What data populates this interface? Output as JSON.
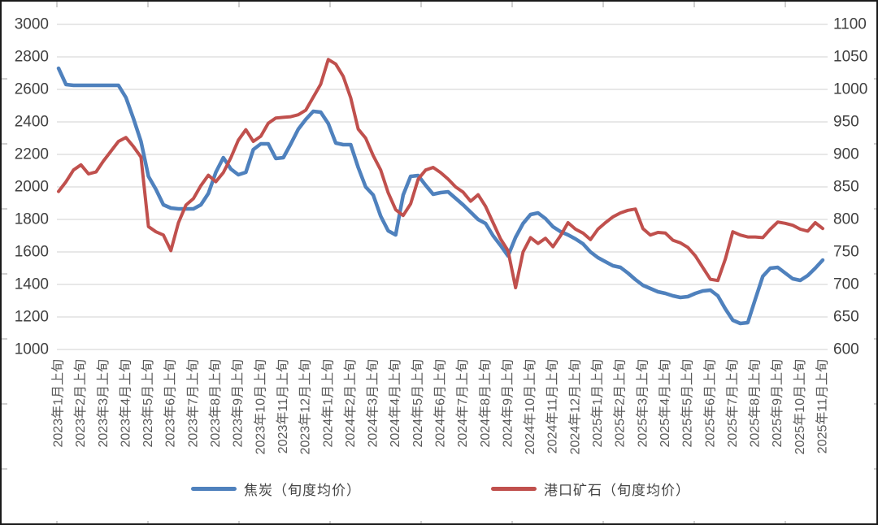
{
  "chart_data": {
    "type": "line",
    "title": "",
    "grid": "horizontal",
    "legend_position": "bottom",
    "points_per_month": 3,
    "x_tick_labels": [
      "2023年1月上旬",
      "2023年2月上旬",
      "2023年3月上旬",
      "2023年4月上旬",
      "2023年5月上旬",
      "2023年6月上旬",
      "2023年7月上旬",
      "2023年8月上旬",
      "2023年9月上旬",
      "2023年10月上旬",
      "2023年11月上旬",
      "2023年12月上旬",
      "2024年1月上旬",
      "2024年2月上旬",
      "2024年3月上旬",
      "2024年4月上旬",
      "2024年5月上旬",
      "2024年6月上旬",
      "2024年7月上旬",
      "2024年8月上旬",
      "2024年9月上旬",
      "2024年10月上旬",
      "2024年11月上旬",
      "2024年12月上旬",
      "2025年1月上旬",
      "2025年2月上旬",
      "2025年3月上旬",
      "2025年4月上旬",
      "2025年5月上旬",
      "2025年6月上旬",
      "2025年7月上旬",
      "2025年8月上旬",
      "2025年9月上旬",
      "2025年10月上旬",
      "2025年11月上旬"
    ],
    "left_axis": {
      "min": 1000,
      "max": 3000,
      "step": 200,
      "ticks": [
        3000,
        2800,
        2600,
        2400,
        2200,
        2000,
        1800,
        1600,
        1400,
        1200,
        1000
      ]
    },
    "right_axis": {
      "min": 600,
      "max": 1100,
      "step": 50,
      "ticks": [
        1100,
        1050,
        1000,
        950,
        900,
        850,
        800,
        750,
        700,
        650,
        600
      ]
    },
    "series": [
      {
        "name": "焦炭（旬度均价）",
        "color": "#4f81bd",
        "axis": "left",
        "line_width": 4.5,
        "values": [
          2730,
          2630,
          2625,
          2625,
          2625,
          2625,
          2625,
          2625,
          2625,
          2550,
          2420,
          2280,
          2065,
          1985,
          1890,
          1870,
          1865,
          1865,
          1865,
          1890,
          1960,
          2090,
          2180,
          2110,
          2075,
          2090,
          2230,
          2265,
          2265,
          2175,
          2180,
          2265,
          2355,
          2415,
          2465,
          2460,
          2390,
          2270,
          2260,
          2260,
          2120,
          2000,
          1950,
          1820,
          1730,
          1705,
          1950,
          2065,
          2070,
          2010,
          1955,
          1965,
          1970,
          1930,
          1890,
          1845,
          1800,
          1775,
          1700,
          1640,
          1575,
          1690,
          1775,
          1830,
          1840,
          1805,
          1755,
          1725,
          1705,
          1680,
          1650,
          1600,
          1565,
          1540,
          1515,
          1505,
          1470,
          1430,
          1395,
          1375,
          1355,
          1345,
          1330,
          1320,
          1325,
          1345,
          1360,
          1365,
          1330,
          1250,
          1180,
          1160,
          1165,
          1310,
          1450,
          1500,
          1505,
          1470,
          1435,
          1425,
          1455,
          1500,
          1550
        ]
      },
      {
        "name": "港口矿石（旬度均价）",
        "color": "#c0504d",
        "axis": "right",
        "line_width": 4,
        "values": [
          843,
          858,
          876,
          884,
          870,
          873,
          890,
          905,
          920,
          926,
          912,
          896,
          789,
          781,
          776,
          752,
          795,
          822,
          832,
          852,
          868,
          858,
          872,
          895,
          922,
          938,
          920,
          928,
          948,
          956,
          957,
          958,
          961,
          968,
          988,
          1008,
          1046,
          1039,
          1020,
          987,
          939,
          925,
          898,
          876,
          841,
          815,
          806,
          824,
          862,
          876,
          880,
          872,
          862,
          850,
          842,
          828,
          838,
          820,
          795,
          770,
          752,
          695,
          750,
          772,
          763,
          771,
          758,
          775,
          795,
          785,
          779,
          769,
          785,
          795,
          804,
          810,
          814,
          816,
          786,
          776,
          780,
          779,
          768,
          764,
          757,
          744,
          726,
          708,
          706,
          739,
          781,
          776,
          773,
          773,
          772,
          785,
          796,
          794,
          791,
          785,
          782,
          795,
          786
        ]
      }
    ]
  },
  "legend": {
    "items": [
      {
        "label": "焦炭（旬度均价）",
        "color": "#4f81bd"
      },
      {
        "label": "港口矿石（旬度均价）",
        "color": "#c0504d"
      }
    ]
  },
  "colors": {
    "background": "#ffffff",
    "gridline": "#d9d9d9",
    "axis_text": "#404040",
    "x_label_text": "#595959",
    "frame": "#1a1a1a",
    "frame_tick": "#bfbfbf"
  }
}
